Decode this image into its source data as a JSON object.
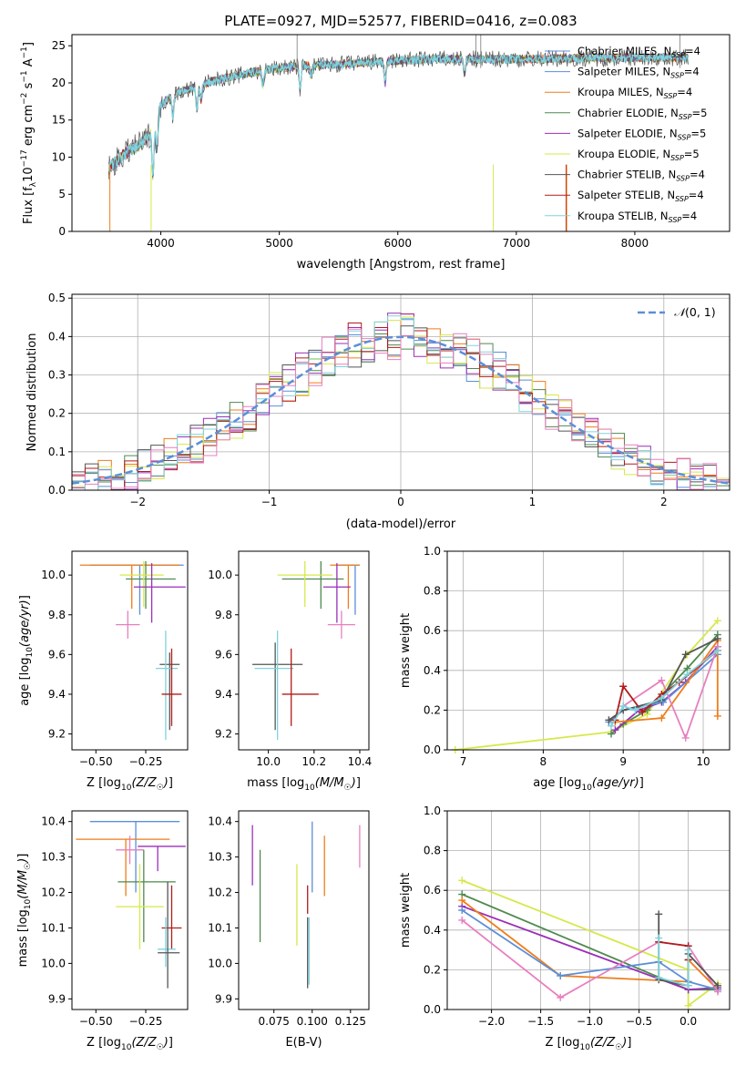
{
  "figure_title": "PLATE=0927, MJD=52577, FIBERID=0416, z=0.083",
  "colors": {
    "chabrier_miles": "#5b8fd8",
    "salpeter_miles": "#5b8fd8",
    "kroupa_miles": "#ee7d1a",
    "chabrier_elodie": "#4f8a4f",
    "salpeter_elodie": "#9a2fb8",
    "kroupa_elodie": "#d6e84a",
    "chabrier_stelib": "#555555",
    "salpeter_stelib": "#b21b1b",
    "kroupa_stelib": "#7ed3dc",
    "gaussian": "#5b8fd8",
    "pink": "#e77fc0"
  },
  "chart_data": [
    {
      "id": "spectrum",
      "type": "line",
      "title": "PLATE=0927, MJD=52577, FIBERID=0416, z=0.083",
      "xlabel": "wavelength [Angstrom, rest frame]",
      "ylabel": "Flux [f_λ 10^-17 erg cm^-2 s^-1 A^-1]",
      "xlim": [
        3250,
        8800
      ],
      "ylim": [
        0,
        26.5
      ],
      "xticks": [
        4000,
        5000,
        6000,
        7000,
        8000
      ],
      "yticks": [
        0,
        5,
        10,
        15,
        20,
        25
      ],
      "legend_position": "right",
      "legend": [
        "Chabrier MILES, N_SSP=4",
        "Salpeter MILES, N_SSP=4",
        "Kroupa MILES, N_SSP=4",
        "Chabrier ELODIE, N_SSP=5",
        "Salpeter ELODIE, N_SSP=5",
        "Kroupa ELODIE, N_SSP=5",
        "Chabrier STELIB, N_SSP=4",
        "Salpeter STELIB, N_SSP=4",
        "Kroupa STELIB, N_SSP=4"
      ],
      "continuum": {
        "x": [
          3560,
          3700,
          3850,
          3950,
          4000,
          4100,
          4300,
          4500,
          4800,
          5000,
          5200,
          5500,
          5800,
          6000,
          6300,
          6600,
          7000,
          7300,
          7500,
          8000,
          8450
        ],
        "y": [
          8.5,
          10.5,
          12,
          14,
          17,
          18.5,
          19.5,
          20.5,
          21.5,
          22,
          22.3,
          22.5,
          22.8,
          23,
          23.2,
          23.2,
          23.2,
          23.3,
          23.3,
          23.4,
          23.4
        ]
      },
      "absorption_lines": [
        {
          "x": 3934,
          "depth": 6
        },
        {
          "x": 3969,
          "depth": 4
        },
        {
          "x": 4102,
          "depth": 3
        },
        {
          "x": 4304,
          "depth": 3
        },
        {
          "x": 4340,
          "depth": 2
        },
        {
          "x": 4861,
          "depth": 2
        },
        {
          "x": 5175,
          "depth": 3
        },
        {
          "x": 5270,
          "depth": 1.5
        },
        {
          "x": 5893,
          "depth": 3
        },
        {
          "x": 6563,
          "depth": 2
        }
      ]
    },
    {
      "id": "residuals",
      "type": "histogram",
      "xlabel": "(data-model)/error",
      "ylabel": "Normed distribution",
      "xlim": [
        -2.5,
        2.5
      ],
      "ylim": [
        0,
        0.51
      ],
      "xticks": [
        -2,
        -1,
        0,
        1,
        2
      ],
      "yticks": [
        0.0,
        0.1,
        0.2,
        0.3,
        0.4,
        0.5
      ],
      "grid": true,
      "legend": [
        "N(0,1)"
      ],
      "legend_position": "top-right",
      "bin_width": 0.1
    },
    {
      "id": "age_vs_z",
      "type": "errorbar",
      "xlabel": "Z [log10(Z/Z☉)]",
      "ylabel": "age [log10(age/yr)]",
      "xlim": [
        -0.62,
        -0.04
      ],
      "ylim": [
        9.12,
        10.12
      ],
      "xticks": [
        -0.5,
        -0.25
      ],
      "yticks": [
        9.2,
        9.4,
        9.6,
        9.8,
        10.0
      ],
      "points": [
        {
          "c": "chabrier_miles",
          "x": -0.28,
          "xerr": [
            0.25,
            0.22
          ],
          "y": 10.05,
          "yerr": [
            0.25,
            0.0
          ]
        },
        {
          "c": "kroupa_miles",
          "x": -0.32,
          "xerr": [
            0.26,
            0.24
          ],
          "y": 10.05,
          "yerr": [
            0.22,
            0.0
          ]
        },
        {
          "c": "chabrier_elodie",
          "x": -0.25,
          "xerr": [
            0.1,
            0.15
          ],
          "y": 9.98,
          "yerr": [
            0.15,
            0.09
          ]
        },
        {
          "c": "kroupa_elodie",
          "x": -0.26,
          "xerr": [
            0.12,
            0.1
          ],
          "y": 10.0,
          "yerr": [
            0.16,
            0.07
          ]
        },
        {
          "c": "salpeter_elodie",
          "x": -0.22,
          "xerr": [
            0.09,
            0.17
          ],
          "y": 9.94,
          "yerr": [
            0.18,
            0.12
          ]
        },
        {
          "c": "pink",
          "x": -0.34,
          "xerr": [
            0.06,
            0.06
          ],
          "y": 9.75,
          "yerr": [
            0.07,
            0.07
          ]
        },
        {
          "c": "chabrier_stelib",
          "x": -0.13,
          "xerr": [
            0.05,
            0.05
          ],
          "y": 9.55,
          "yerr": [
            0.33,
            0.06
          ]
        },
        {
          "c": "kroupa_stelib",
          "x": -0.15,
          "xerr": [
            0.05,
            0.06
          ],
          "y": 9.53,
          "yerr": [
            0.36,
            0.19
          ]
        },
        {
          "c": "salpeter_stelib",
          "x": -0.12,
          "xerr": [
            0.05,
            0.05
          ],
          "y": 9.4,
          "yerr": [
            0.16,
            0.23
          ]
        }
      ]
    },
    {
      "id": "age_vs_mass",
      "type": "errorbar",
      "xlabel": "mass [log10(M/M☉)]",
      "ylabel": "",
      "xlim": [
        9.87,
        10.44
      ],
      "ylim": [
        9.12,
        10.12
      ],
      "xticks": [
        10.0,
        10.2,
        10.4
      ],
      "yticks": [
        9.2,
        9.4,
        9.6,
        9.8,
        10.0
      ],
      "points": [
        {
          "c": "chabrier_miles",
          "x": 10.38,
          "xerr": [
            0.08,
            0.02
          ],
          "y": 10.05,
          "yerr": [
            0.25,
            0.0
          ]
        },
        {
          "c": "kroupa_miles",
          "x": 10.35,
          "xerr": [
            0.08,
            0.05
          ],
          "y": 10.05,
          "yerr": [
            0.22,
            0.0
          ]
        },
        {
          "c": "chabrier_elodie",
          "x": 10.23,
          "xerr": [
            0.17,
            0.1
          ],
          "y": 9.98,
          "yerr": [
            0.15,
            0.09
          ]
        },
        {
          "c": "kroupa_elodie",
          "x": 10.16,
          "xerr": [
            0.12,
            0.12
          ],
          "y": 10.0,
          "yerr": [
            0.16,
            0.07
          ]
        },
        {
          "c": "salpeter_elodie",
          "x": 10.3,
          "xerr": [
            0.06,
            0.06
          ],
          "y": 9.94,
          "yerr": [
            0.18,
            0.12
          ]
        },
        {
          "c": "pink",
          "x": 10.32,
          "xerr": [
            0.06,
            0.06
          ],
          "y": 9.75,
          "yerr": [
            0.07,
            0.07
          ]
        },
        {
          "c": "chabrier_stelib",
          "x": 10.03,
          "xerr": [
            0.1,
            0.12
          ],
          "y": 9.55,
          "yerr": [
            0.33,
            0.11
          ]
        },
        {
          "c": "kroupa_stelib",
          "x": 10.04,
          "xerr": [
            0.1,
            0.07
          ],
          "y": 9.53,
          "yerr": [
            0.36,
            0.19
          ]
        },
        {
          "c": "salpeter_stelib",
          "x": 10.1,
          "xerr": [
            0.04,
            0.12
          ],
          "y": 9.4,
          "yerr": [
            0.16,
            0.23
          ]
        }
      ]
    },
    {
      "id": "weight_vs_age",
      "type": "line",
      "xlabel": "age [log10(age/yr)]",
      "ylabel": "mass weight",
      "xlim": [
        6.8,
        10.33
      ],
      "ylim": [
        0,
        1.0
      ],
      "xticks": [
        7,
        8,
        9,
        10
      ],
      "yticks": [
        0.0,
        0.2,
        0.4,
        0.6,
        0.8,
        1.0
      ],
      "grid": true,
      "series": [
        {
          "c": "kroupa_elodie",
          "x": [
            6.9,
            8.85,
            9.3,
            9.8,
            10.18
          ],
          "y": [
            0.0,
            0.09,
            0.18,
            0.48,
            0.65
          ]
        },
        {
          "c": "chabrier_elodie",
          "x": [
            8.85,
            9.0,
            9.3,
            9.8,
            10.18
          ],
          "y": [
            0.08,
            0.13,
            0.2,
            0.41,
            0.58
          ]
        },
        {
          "c": "salpeter_elodie",
          "x": [
            8.9,
            9.2,
            9.48,
            9.78,
            10.18
          ],
          "y": [
            0.1,
            0.2,
            0.24,
            0.34,
            0.52
          ]
        },
        {
          "c": "chabrier_miles",
          "x": [
            8.82,
            9.0,
            9.5,
            10.18
          ],
          "y": [
            0.14,
            0.2,
            0.24,
            0.48
          ]
        },
        {
          "c": "kroupa_miles",
          "x": [
            8.9,
            9.48,
            10.18,
            10.18
          ],
          "y": [
            0.14,
            0.16,
            0.55,
            0.17
          ]
        },
        {
          "c": "pink",
          "x": [
            9.0,
            9.48,
            9.78,
            10.18
          ],
          "y": [
            0.22,
            0.35,
            0.06,
            0.52
          ]
        },
        {
          "c": "salpeter_stelib",
          "x": [
            8.9,
            9.0,
            9.24,
            9.48,
            9.7,
            10.18
          ],
          "y": [
            0.15,
            0.32,
            0.19,
            0.28,
            0.34,
            0.5
          ]
        },
        {
          "c": "chabrier_stelib",
          "x": [
            8.82,
            9.0,
            9.48,
            9.78,
            10.18
          ],
          "y": [
            0.15,
            0.2,
            0.25,
            0.48,
            0.56
          ]
        },
        {
          "c": "kroupa_stelib",
          "x": [
            8.85,
            9.0,
            9.15,
            9.48,
            9.8,
            10.18
          ],
          "y": [
            0.12,
            0.22,
            0.2,
            0.26,
            0.38,
            0.5
          ]
        }
      ]
    },
    {
      "id": "mass_vs_z",
      "type": "errorbar",
      "xlabel": "Z [log10(Z/Z☉)]",
      "ylabel": "mass [log10(M/M☉)]",
      "xlim": [
        -0.62,
        -0.04
      ],
      "ylim": [
        9.87,
        10.43
      ],
      "xticks": [
        -0.5,
        -0.25
      ],
      "yticks": [
        9.9,
        10.0,
        10.1,
        10.2,
        10.3,
        10.4
      ],
      "points": [
        {
          "c": "chabrier_miles",
          "x": -0.3,
          "xerr": [
            0.23,
            0.22
          ],
          "y": 10.4,
          "yerr": [
            0.2,
            0.0
          ]
        },
        {
          "c": "kroupa_miles",
          "x": -0.35,
          "xerr": [
            0.25,
            0.22
          ],
          "y": 10.35,
          "yerr": [
            0.16,
            0.0
          ]
        },
        {
          "c": "salpeter_elodie",
          "x": -0.19,
          "xerr": [
            0.1,
            0.14
          ],
          "y": 10.33,
          "yerr": [
            0.07,
            0.0
          ]
        },
        {
          "c": "pink",
          "x": -0.33,
          "xerr": [
            0.07,
            0.07
          ],
          "y": 10.32,
          "yerr": [
            0.04,
            0.04
          ]
        },
        {
          "c": "chabrier_elodie",
          "x": -0.26,
          "xerr": [
            0.13,
            0.16
          ],
          "y": 10.23,
          "yerr": [
            0.17,
            0.09
          ]
        },
        {
          "c": "kroupa_elodie",
          "x": -0.28,
          "xerr": [
            0.12,
            0.12
          ],
          "y": 10.16,
          "yerr": [
            0.12,
            0.12
          ]
        },
        {
          "c": "salpeter_stelib",
          "x": -0.12,
          "xerr": [
            0.05,
            0.05
          ],
          "y": 10.1,
          "yerr": [
            0.06,
            0.12
          ]
        },
        {
          "c": "kroupa_stelib",
          "x": -0.15,
          "xerr": [
            0.04,
            0.05
          ],
          "y": 10.04,
          "yerr": [
            0.05,
            0.09
          ]
        },
        {
          "c": "chabrier_stelib",
          "x": -0.14,
          "xerr": [
            0.05,
            0.06
          ],
          "y": 10.03,
          "yerr": [
            0.1,
            0.2
          ]
        }
      ]
    },
    {
      "id": "mass_vs_ebv",
      "type": "errorbar",
      "xlabel": "E(B-V)",
      "ylabel": "",
      "xlim": [
        0.052,
        0.137
      ],
      "ylim": [
        9.87,
        10.43
      ],
      "xticks": [
        0.075,
        0.1,
        0.125
      ],
      "yticks": [
        9.9,
        10.0,
        10.1,
        10.2,
        10.3,
        10.4
      ],
      "points": [
        {
          "c": "salpeter_elodie",
          "x": 0.061,
          "xerr": [
            0,
            0
          ],
          "y": 10.3,
          "yerr": [
            0.08,
            0.09
          ]
        },
        {
          "c": "chabrier_elodie",
          "x": 0.066,
          "xerr": [
            0,
            0
          ],
          "y": 10.19,
          "yerr": [
            0.13,
            0.13
          ]
        },
        {
          "c": "kroupa_elodie",
          "x": 0.09,
          "xerr": [
            0,
            0
          ],
          "y": 10.17,
          "yerr": [
            0.12,
            0.11
          ]
        },
        {
          "c": "chabrier_stelib",
          "x": 0.097,
          "xerr": [
            0,
            0
          ],
          "y": 10.03,
          "yerr": [
            0.1,
            0.1
          ]
        },
        {
          "c": "kroupa_stelib",
          "x": 0.098,
          "xerr": [
            0,
            0
          ],
          "y": 10.04,
          "yerr": [
            0.1,
            0.09
          ]
        },
        {
          "c": "salpeter_stelib",
          "x": 0.097,
          "xerr": [
            0,
            0
          ],
          "y": 10.18,
          "yerr": [
            0.04,
            0.04
          ]
        },
        {
          "c": "chabrier_miles",
          "x": 0.1,
          "xerr": [
            0,
            0
          ],
          "y": 10.3,
          "yerr": [
            0.1,
            0.1
          ]
        },
        {
          "c": "kroupa_miles",
          "x": 0.108,
          "xerr": [
            0,
            0
          ],
          "y": 10.27,
          "yerr": [
            0.08,
            0.09
          ]
        },
        {
          "c": "pink",
          "x": 0.131,
          "xerr": [
            0,
            0
          ],
          "y": 10.33,
          "yerr": [
            0.06,
            0.06
          ]
        }
      ]
    },
    {
      "id": "weight_vs_z",
      "type": "line",
      "xlabel": "Z [log10(Z/Z☉)]",
      "ylabel": "mass weight",
      "xlim": [
        -2.45,
        0.42
      ],
      "ylim": [
        0,
        1.0
      ],
      "xticks": [
        -2.0,
        -1.5,
        -1.0,
        -0.5,
        0.0
      ],
      "yticks": [
        0.0,
        0.2,
        0.4,
        0.6,
        0.8,
        1.0
      ],
      "grid": true,
      "series": [
        {
          "c": "kroupa_elodie",
          "x": [
            -2.3,
            0.0,
            0.0,
            0.3
          ],
          "y": [
            0.65,
            0.2,
            0.02,
            0.13
          ]
        },
        {
          "c": "chabrier_elodie",
          "x": [
            -2.3,
            0.0,
            0.3
          ],
          "y": [
            0.58,
            0.1,
            0.1
          ]
        },
        {
          "c": "salpeter_elodie",
          "x": [
            -2.3,
            0.0,
            0.3
          ],
          "y": [
            0.52,
            0.1,
            0.11
          ]
        },
        {
          "c": "kroupa_miles",
          "x": [
            -2.3,
            -1.3,
            0.0,
            0.0,
            0.3
          ],
          "y": [
            0.55,
            0.17,
            0.14,
            0.25,
            0.1
          ]
        },
        {
          "c": "chabrier_miles",
          "x": [
            -2.3,
            -1.3,
            -0.3,
            0.0,
            0.3
          ],
          "y": [
            0.5,
            0.17,
            0.24,
            0.14,
            0.1
          ]
        },
        {
          "c": "pink",
          "x": [
            -2.3,
            -1.3,
            -0.3,
            0.0,
            0.3
          ],
          "y": [
            0.45,
            0.06,
            0.34,
            0.32,
            0.09
          ]
        },
        {
          "c": "salpeter_stelib",
          "x": [
            -0.3,
            0.0,
            0.0
          ],
          "y": [
            0.34,
            0.32,
            0.25
          ]
        },
        {
          "c": "chabrier_stelib",
          "x": [
            -0.3,
            -0.3,
            0.0,
            0.0,
            0.3
          ],
          "y": [
            0.48,
            0.15,
            0.12,
            0.28,
            0.12
          ]
        },
        {
          "c": "kroupa_stelib",
          "x": [
            -0.3,
            -0.3,
            0.0,
            0.0
          ],
          "y": [
            0.36,
            0.16,
            0.12,
            0.3
          ]
        }
      ]
    }
  ]
}
